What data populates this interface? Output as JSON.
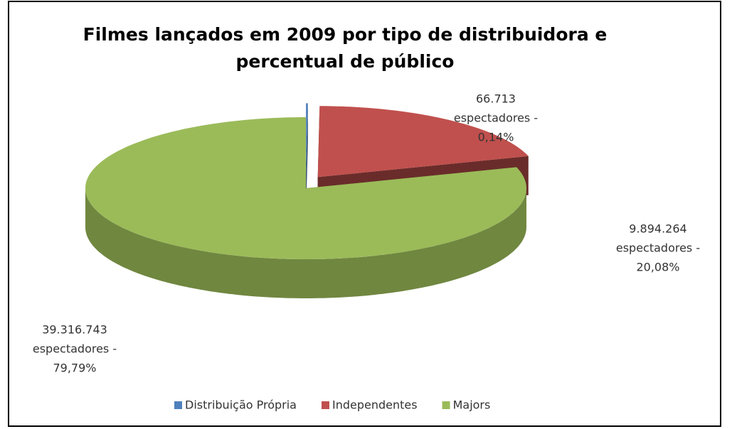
{
  "chart_data": {
    "type": "pie",
    "title": "Filmes lançados em 2009 por tipo de distribuidora e percentual de público",
    "categories": [
      "Distribuição Própria",
      "Independentes",
      "Majors"
    ],
    "values": [
      66713,
      9894264,
      39316743
    ],
    "value_labels": [
      [
        "66.713",
        "espectadores -",
        "0,14%"
      ],
      [
        "9.894.264",
        "espectadores -",
        "20,08%"
      ],
      [
        "39.316.743",
        "espectadores -",
        "79,79%"
      ]
    ],
    "colors": [
      "#4f81bd",
      "#c0504d",
      "#9bbb59"
    ],
    "legend": "bottom"
  }
}
